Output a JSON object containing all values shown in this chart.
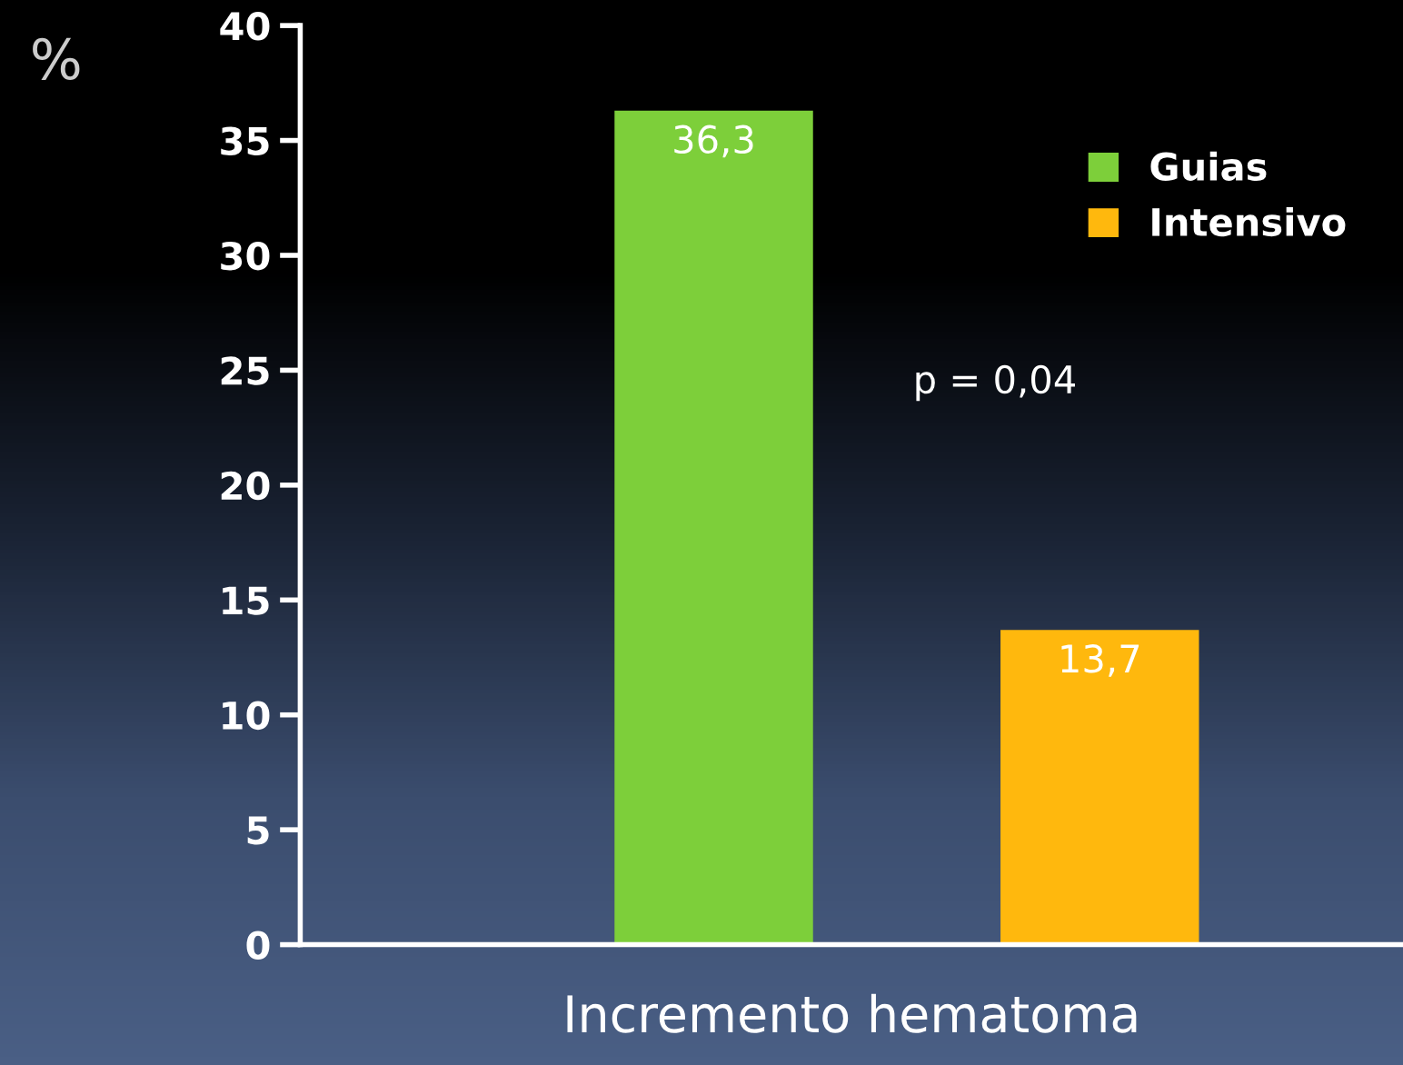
{
  "chart_data": {
    "type": "bar",
    "ylabel": "%",
    "xlabel": "Incremento hematoma",
    "categories": [
      null
    ],
    "series": [
      {
        "name": "Guias",
        "color": "#7dcf3a",
        "values": [
          36.3
        ],
        "value_labels": [
          "36,3"
        ]
      },
      {
        "name": "Intensivo",
        "color": "#ffb80d",
        "values": [
          13.7
        ],
        "value_labels": [
          "13,7"
        ]
      }
    ],
    "ylim": [
      0,
      40
    ],
    "yticks": [
      0,
      5,
      10,
      15,
      20,
      25,
      30,
      35,
      40
    ],
    "grid": false,
    "legend": "top right",
    "annotations": [
      "p = 0,04"
    ]
  }
}
